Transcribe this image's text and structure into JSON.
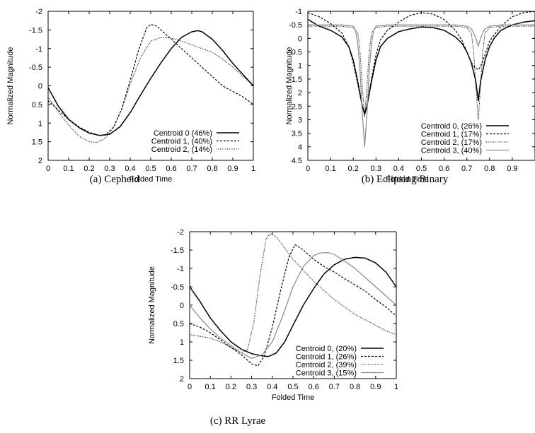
{
  "chart_data": [
    {
      "type": "line",
      "caption": "(a) Cepheid",
      "xlabel": "Folded Time",
      "ylabel": "Normalized Magnitude",
      "xlim": [
        0,
        1
      ],
      "ylim": [
        2,
        -2
      ],
      "y_inverted": true,
      "xticks": [
        "0",
        "0.1",
        "0.2",
        "0.3",
        "0.4",
        "0.5",
        "0.6",
        "0.7",
        "0.8",
        "0.9",
        "1"
      ],
      "yticks": [
        "-2",
        "-1.5",
        "-1",
        "-0.5",
        "0",
        "0.5",
        "1",
        "1.5",
        "2"
      ],
      "legend_position": "bottom-right",
      "series": [
        {
          "name": "Centroid 0 (46%)",
          "style": "solid",
          "x": [
            0,
            0.05,
            0.1,
            0.15,
            0.2,
            0.25,
            0.3,
            0.35,
            0.4,
            0.45,
            0.5,
            0.55,
            0.6,
            0.65,
            0.7,
            0.73,
            0.75,
            0.8,
            0.85,
            0.9,
            0.95,
            1.0
          ],
          "y": [
            0.05,
            0.55,
            0.9,
            1.12,
            1.27,
            1.33,
            1.3,
            1.1,
            0.72,
            0.25,
            -0.2,
            -0.62,
            -1.0,
            -1.3,
            -1.45,
            -1.48,
            -1.45,
            -1.25,
            -0.95,
            -0.6,
            -0.3,
            0.0
          ]
        },
        {
          "name": "Centroid 1, (40%)",
          "style": "dashed",
          "x": [
            0,
            0.05,
            0.1,
            0.15,
            0.2,
            0.25,
            0.28,
            0.32,
            0.36,
            0.4,
            0.44,
            0.48,
            0.5,
            0.53,
            0.56,
            0.6,
            0.65,
            0.7,
            0.75,
            0.8,
            0.85,
            0.9,
            0.95,
            1.0
          ],
          "y": [
            0.4,
            0.65,
            0.9,
            1.1,
            1.25,
            1.33,
            1.32,
            1.1,
            0.6,
            -0.15,
            -0.95,
            -1.55,
            -1.65,
            -1.6,
            -1.45,
            -1.25,
            -1.0,
            -0.75,
            -0.5,
            -0.25,
            0.0,
            0.15,
            0.3,
            0.5
          ]
        },
        {
          "name": "Centroid 2, (14%)",
          "style": "dotted",
          "x": [
            0,
            0.05,
            0.1,
            0.15,
            0.2,
            0.24,
            0.28,
            0.32,
            0.36,
            0.4,
            0.45,
            0.5,
            0.55,
            0.6,
            0.65,
            0.7,
            0.75,
            0.8,
            0.85,
            0.9,
            0.95,
            1.0
          ],
          "y": [
            0.3,
            0.7,
            1.05,
            1.35,
            1.5,
            1.52,
            1.4,
            1.1,
            0.6,
            -0.05,
            -0.75,
            -1.2,
            -1.3,
            -1.28,
            -1.2,
            -1.1,
            -1.0,
            -0.9,
            -0.72,
            -0.5,
            -0.25,
            0.0
          ]
        }
      ]
    },
    {
      "type": "line",
      "caption": "(b) Eclipsing Binary",
      "xlabel": "Folded Time",
      "ylabel": "Normalized Magnitude",
      "xlim": [
        0,
        1
      ],
      "ylim": [
        4.5,
        -1
      ],
      "y_inverted": true,
      "xticks": [
        "0",
        "0.1",
        "0.2",
        "0.3",
        "0.4",
        "0.5",
        "0.6",
        "0.7",
        "0.8",
        "0.9"
      ],
      "yticks": [
        "-1",
        "-0.5",
        "0",
        "0.5",
        "1",
        "1.5",
        "2",
        "2.5",
        "3",
        "3.5",
        "4",
        "4.5"
      ],
      "legend_position": "bottom-right",
      "series": [
        {
          "name": "Centroid 0, (26%)",
          "style": "solid",
          "x": [
            0,
            0.05,
            0.1,
            0.15,
            0.18,
            0.2,
            0.22,
            0.24,
            0.25,
            0.26,
            0.28,
            0.3,
            0.32,
            0.35,
            0.4,
            0.45,
            0.5,
            0.55,
            0.6,
            0.65,
            0.68,
            0.7,
            0.72,
            0.74,
            0.75,
            0.76,
            0.78,
            0.8,
            0.82,
            0.85,
            0.9,
            0.95,
            1.0
          ],
          "y": [
            -0.7,
            -0.45,
            -0.3,
            -0.05,
            0.3,
            0.8,
            1.6,
            2.5,
            2.8,
            2.5,
            1.6,
            0.8,
            0.3,
            0.0,
            -0.25,
            -0.35,
            -0.42,
            -0.4,
            -0.3,
            -0.05,
            0.2,
            0.5,
            0.9,
            1.6,
            2.3,
            1.6,
            0.8,
            0.3,
            0.0,
            -0.3,
            -0.5,
            -0.6,
            -0.65
          ]
        },
        {
          "name": "Centroid 1, (17%)",
          "style": "dashed",
          "x": [
            0,
            0.05,
            0.1,
            0.15,
            0.18,
            0.2,
            0.22,
            0.24,
            0.25,
            0.26,
            0.28,
            0.3,
            0.32,
            0.35,
            0.4,
            0.45,
            0.5,
            0.55,
            0.6,
            0.65,
            0.68,
            0.7,
            0.72,
            0.74,
            0.75,
            0.76,
            0.78,
            0.8,
            0.85,
            0.9,
            0.95,
            1.0
          ],
          "y": [
            -0.95,
            -0.8,
            -0.55,
            -0.2,
            0.3,
            0.9,
            1.7,
            2.5,
            2.75,
            2.45,
            1.5,
            0.6,
            0.05,
            -0.3,
            -0.6,
            -0.85,
            -0.95,
            -0.9,
            -0.7,
            -0.3,
            0.1,
            0.5,
            0.9,
            1.1,
            1.15,
            1.05,
            0.6,
            0.1,
            -0.45,
            -0.8,
            -0.95,
            -1.0
          ]
        },
        {
          "name": "Centroid 2, (17%)",
          "style": "dotted",
          "x": [
            0,
            0.05,
            0.1,
            0.15,
            0.2,
            0.22,
            0.23,
            0.24,
            0.25,
            0.26,
            0.27,
            0.28,
            0.3,
            0.35,
            0.4,
            0.45,
            0.5,
            0.55,
            0.6,
            0.65,
            0.7,
            0.72,
            0.73,
            0.74,
            0.75,
            0.76,
            0.77,
            0.78,
            0.8,
            0.85,
            0.9,
            0.95,
            1.0
          ],
          "y": [
            -0.45,
            -0.45,
            -0.45,
            -0.45,
            -0.4,
            -0.2,
            0.5,
            1.8,
            2.9,
            1.8,
            0.5,
            -0.2,
            -0.4,
            -0.45,
            -0.45,
            -0.45,
            -0.45,
            -0.45,
            -0.45,
            -0.45,
            -0.4,
            -0.2,
            0.5,
            1.8,
            3.0,
            1.8,
            0.5,
            -0.2,
            -0.4,
            -0.45,
            -0.45,
            -0.45,
            -0.45
          ]
        },
        {
          "name": "Centroid 3, (40%)",
          "style": "grey",
          "x": [
            0,
            0.05,
            0.1,
            0.15,
            0.2,
            0.21,
            0.22,
            0.23,
            0.24,
            0.25,
            0.26,
            0.27,
            0.28,
            0.29,
            0.3,
            0.35,
            0.4,
            0.45,
            0.5,
            0.55,
            0.6,
            0.65,
            0.7,
            0.72,
            0.73,
            0.74,
            0.75,
            0.76,
            0.77,
            0.78,
            0.8,
            0.85,
            0.9,
            0.95,
            1.0
          ],
          "y": [
            -0.5,
            -0.5,
            -0.5,
            -0.5,
            -0.45,
            -0.3,
            0.2,
            1.2,
            2.8,
            4.0,
            2.8,
            1.2,
            0.2,
            -0.3,
            -0.45,
            -0.5,
            -0.5,
            -0.5,
            -0.5,
            -0.5,
            -0.5,
            -0.5,
            -0.45,
            -0.35,
            -0.2,
            0.0,
            0.3,
            0.0,
            -0.2,
            -0.35,
            -0.45,
            -0.5,
            -0.5,
            -0.5,
            -0.5
          ]
        }
      ]
    },
    {
      "type": "line",
      "caption": "(c) RR Lyrae",
      "xlabel": "Folded Time",
      "ylabel": "Normalized Magnitude",
      "xlim": [
        0,
        1
      ],
      "ylim": [
        2,
        -2
      ],
      "y_inverted": true,
      "xticks": [
        "0",
        "0.1",
        "0.2",
        "0.3",
        "0.4",
        "0.5",
        "0.6",
        "0.7",
        "0.8",
        "0.9",
        "1"
      ],
      "yticks": [
        "-2",
        "-1.5",
        "-1",
        "-0.5",
        "0",
        "0.5",
        "1",
        "1.5",
        "2"
      ],
      "legend_position": "bottom-right",
      "series": [
        {
          "name": "Centroid 0, (20%)",
          "style": "solid",
          "x": [
            0,
            0.05,
            0.1,
            0.15,
            0.2,
            0.25,
            0.3,
            0.35,
            0.38,
            0.42,
            0.46,
            0.5,
            0.55,
            0.6,
            0.65,
            0.7,
            0.75,
            0.8,
            0.85,
            0.9,
            0.95,
            1.0
          ],
          "y": [
            -0.5,
            -0.1,
            0.35,
            0.7,
            1.0,
            1.2,
            1.32,
            1.38,
            1.4,
            1.3,
            1.0,
            0.55,
            0.0,
            -0.45,
            -0.85,
            -1.1,
            -1.25,
            -1.3,
            -1.28,
            -1.15,
            -0.9,
            -0.5
          ]
        },
        {
          "name": "Centroid 1, (26%)",
          "style": "dashed",
          "x": [
            0,
            0.05,
            0.1,
            0.15,
            0.2,
            0.25,
            0.3,
            0.33,
            0.36,
            0.4,
            0.44,
            0.48,
            0.51,
            0.55,
            0.6,
            0.65,
            0.7,
            0.75,
            0.8,
            0.85,
            0.9,
            0.95,
            1.0
          ],
          "y": [
            0.5,
            0.6,
            0.75,
            0.95,
            1.15,
            1.35,
            1.6,
            1.65,
            1.4,
            0.6,
            -0.4,
            -1.3,
            -1.65,
            -1.5,
            -1.25,
            -1.05,
            -0.9,
            -0.72,
            -0.55,
            -0.38,
            -0.15,
            0.05,
            0.3
          ]
        },
        {
          "name": "Centroid 2, (39%)",
          "style": "dotted",
          "x": [
            0,
            0.05,
            0.1,
            0.15,
            0.2,
            0.25,
            0.28,
            0.31,
            0.34,
            0.37,
            0.39,
            0.42,
            0.46,
            0.5,
            0.55,
            0.6,
            0.65,
            0.7,
            0.75,
            0.8,
            0.85,
            0.9,
            0.95,
            1.0
          ],
          "y": [
            0.8,
            0.85,
            0.9,
            1.0,
            1.15,
            1.3,
            1.2,
            0.5,
            -0.8,
            -1.8,
            -1.95,
            -1.85,
            -1.55,
            -1.25,
            -0.95,
            -0.65,
            -0.4,
            -0.15,
            0.05,
            0.25,
            0.4,
            0.55,
            0.7,
            0.8
          ]
        },
        {
          "name": "Centroid 3, (15%)",
          "style": "grey",
          "x": [
            0,
            0.05,
            0.1,
            0.15,
            0.2,
            0.25,
            0.3,
            0.35,
            0.4,
            0.45,
            0.5,
            0.55,
            0.6,
            0.63,
            0.67,
            0.7,
            0.75,
            0.8,
            0.85,
            0.9,
            0.95,
            1.0
          ],
          "y": [
            0.0,
            0.35,
            0.65,
            0.9,
            1.1,
            1.3,
            1.45,
            1.35,
            1.0,
            0.3,
            -0.5,
            -1.05,
            -1.35,
            -1.42,
            -1.43,
            -1.38,
            -1.2,
            -1.0,
            -0.75,
            -0.5,
            -0.25,
            0.0
          ]
        }
      ]
    }
  ]
}
